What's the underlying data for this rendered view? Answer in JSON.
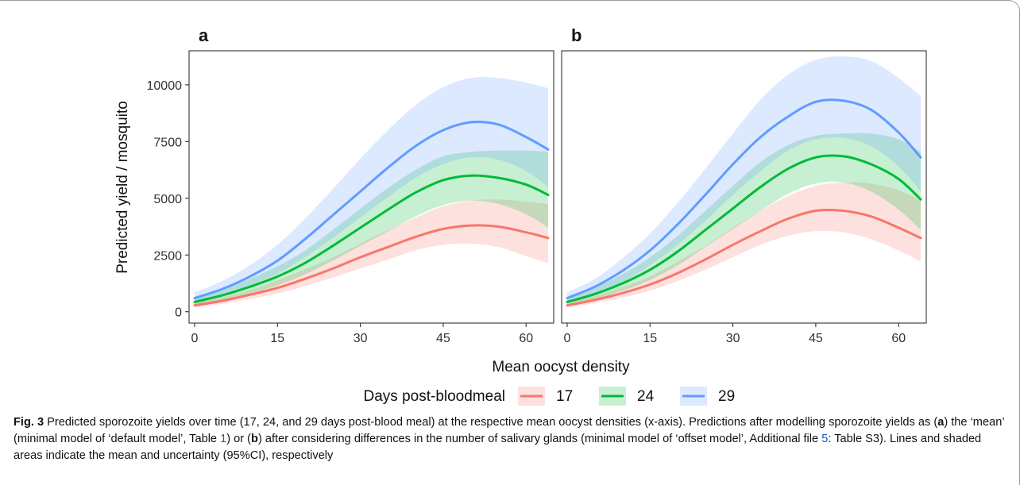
{
  "chart_data": [
    {
      "type": "line",
      "panel_label": "a",
      "xlabel": "Mean oocyst density",
      "ylabel": "Predicted yield / mosquito",
      "xlim": [
        -1,
        65
      ],
      "ylim": [
        -500,
        11500
      ],
      "xticks": [
        "0",
        "15",
        "30",
        "45",
        "60"
      ],
      "yticks": [
        "0",
        "2500",
        "5000",
        "7500",
        "10000"
      ],
      "grid": false,
      "legend_position": "bottom",
      "x": [
        0,
        5,
        10,
        15,
        20,
        25,
        30,
        35,
        40,
        45,
        50,
        55,
        60,
        64
      ],
      "series": [
        {
          "name": "17",
          "color": "#f8766d",
          "values": [
            280,
            480,
            750,
            1050,
            1450,
            1900,
            2400,
            2850,
            3300,
            3650,
            3800,
            3750,
            3500,
            3250
          ],
          "lower": [
            180,
            350,
            560,
            800,
            1130,
            1500,
            1900,
            2300,
            2700,
            2950,
            3000,
            2850,
            2450,
            2150
          ],
          "upper": [
            420,
            640,
            960,
            1380,
            1870,
            2400,
            3000,
            3600,
            4150,
            4650,
            4900,
            4950,
            4850,
            4750
          ]
        },
        {
          "name": "24",
          "color": "#00ba38",
          "values": [
            430,
            720,
            1100,
            1550,
            2150,
            2900,
            3700,
            4500,
            5250,
            5800,
            6000,
            5900,
            5600,
            5150
          ],
          "lower": [
            300,
            520,
            800,
            1160,
            1650,
            2250,
            2900,
            3550,
            4200,
            4700,
            4900,
            4750,
            4300,
            3700
          ],
          "upper": [
            620,
            980,
            1450,
            2000,
            2700,
            3600,
            4550,
            5450,
            6250,
            6850,
            7050,
            7100,
            7100,
            7050
          ]
        },
        {
          "name": "29",
          "color": "#619cff",
          "values": [
            600,
            1000,
            1550,
            2250,
            3200,
            4250,
            5300,
            6350,
            7300,
            8000,
            8350,
            8250,
            7700,
            7150
          ],
          "lower": [
            420,
            730,
            1150,
            1680,
            2400,
            3250,
            4150,
            5050,
            5900,
            6500,
            6800,
            6700,
            6200,
            5500
          ],
          "upper": [
            850,
            1350,
            2050,
            2950,
            4100,
            5400,
            6750,
            8000,
            9100,
            9900,
            10300,
            10300,
            10100,
            9850
          ]
        }
      ]
    },
    {
      "type": "line",
      "panel_label": "b",
      "xlabel": "Mean oocyst density",
      "ylabel": "Predicted yield / mosquito",
      "xlim": [
        -1,
        65
      ],
      "ylim": [
        -500,
        11500
      ],
      "xticks": [
        "0",
        "15",
        "30",
        "45",
        "60"
      ],
      "yticks": [
        "0",
        "2500",
        "5000",
        "7500",
        "10000"
      ],
      "grid": false,
      "legend_position": "bottom",
      "x": [
        0,
        5,
        10,
        15,
        20,
        25,
        30,
        35,
        40,
        45,
        50,
        55,
        60,
        64
      ],
      "series": [
        {
          "name": "17",
          "color": "#f8766d",
          "values": [
            280,
            520,
            820,
            1200,
            1700,
            2300,
            2950,
            3550,
            4100,
            4450,
            4450,
            4200,
            3700,
            3250
          ],
          "lower": [
            180,
            380,
            620,
            930,
            1350,
            1850,
            2400,
            2950,
            3350,
            3550,
            3500,
            3200,
            2700,
            2200
          ],
          "upper": [
            420,
            700,
            1080,
            1550,
            2200,
            2900,
            3700,
            4450,
            5100,
            5550,
            5700,
            5650,
            5350,
            4900
          ]
        },
        {
          "name": "24",
          "color": "#00ba38",
          "values": [
            430,
            780,
            1250,
            1850,
            2650,
            3600,
            4550,
            5500,
            6300,
            6800,
            6850,
            6500,
            5850,
            4950
          ],
          "lower": [
            300,
            560,
            920,
            1400,
            2050,
            2850,
            3650,
            4450,
            5200,
            5650,
            5700,
            5300,
            4500,
            3600
          ],
          "upper": [
            620,
            1060,
            1650,
            2400,
            3350,
            4450,
            5550,
            6600,
            7350,
            7750,
            7850,
            7850,
            7600,
            7050
          ]
        },
        {
          "name": "29",
          "color": "#619cff",
          "values": [
            600,
            1100,
            1800,
            2700,
            3850,
            5150,
            6500,
            7700,
            8600,
            9250,
            9300,
            8900,
            7900,
            6800
          ],
          "lower": [
            420,
            800,
            1320,
            2050,
            2950,
            4000,
            5150,
            6200,
            7100,
            7600,
            7650,
            7300,
            6400,
            5300
          ],
          "upper": [
            850,
            1450,
            2350,
            3450,
            4800,
            6300,
            7850,
            9350,
            10450,
            11100,
            11250,
            11050,
            10300,
            9500
          ]
        }
      ]
    }
  ],
  "legend": {
    "title": "Days post-bloodmeal",
    "entries": [
      "17",
      "24",
      "29"
    ]
  },
  "caption": {
    "fig_label": "Fig. 3",
    "text_1": "  Predicted sporozoite yields over time (17, 24, and 29 days post-blood meal) at the respective mean oocyst densities (x-axis). Predictions after modelling sporozoite yields as (",
    "bold_a": "a",
    "text_2": ") the ‘mean’ (minimal model of ‘default model’, Table ",
    "table_ref": "1",
    "text_3": ") or (",
    "bold_b": "b",
    "text_4": ") after considering differences in the number of salivary glands (minimal model of ‘offset model’, Additional file ",
    "file_ref": "5",
    "text_5": ": Table S3). Lines and shaded areas indicate the mean and uncertainty (95%CI), respectively"
  },
  "colors": {
    "link": "#1a57c8",
    "frame": "#9a9a9a",
    "axis": "#333333"
  }
}
